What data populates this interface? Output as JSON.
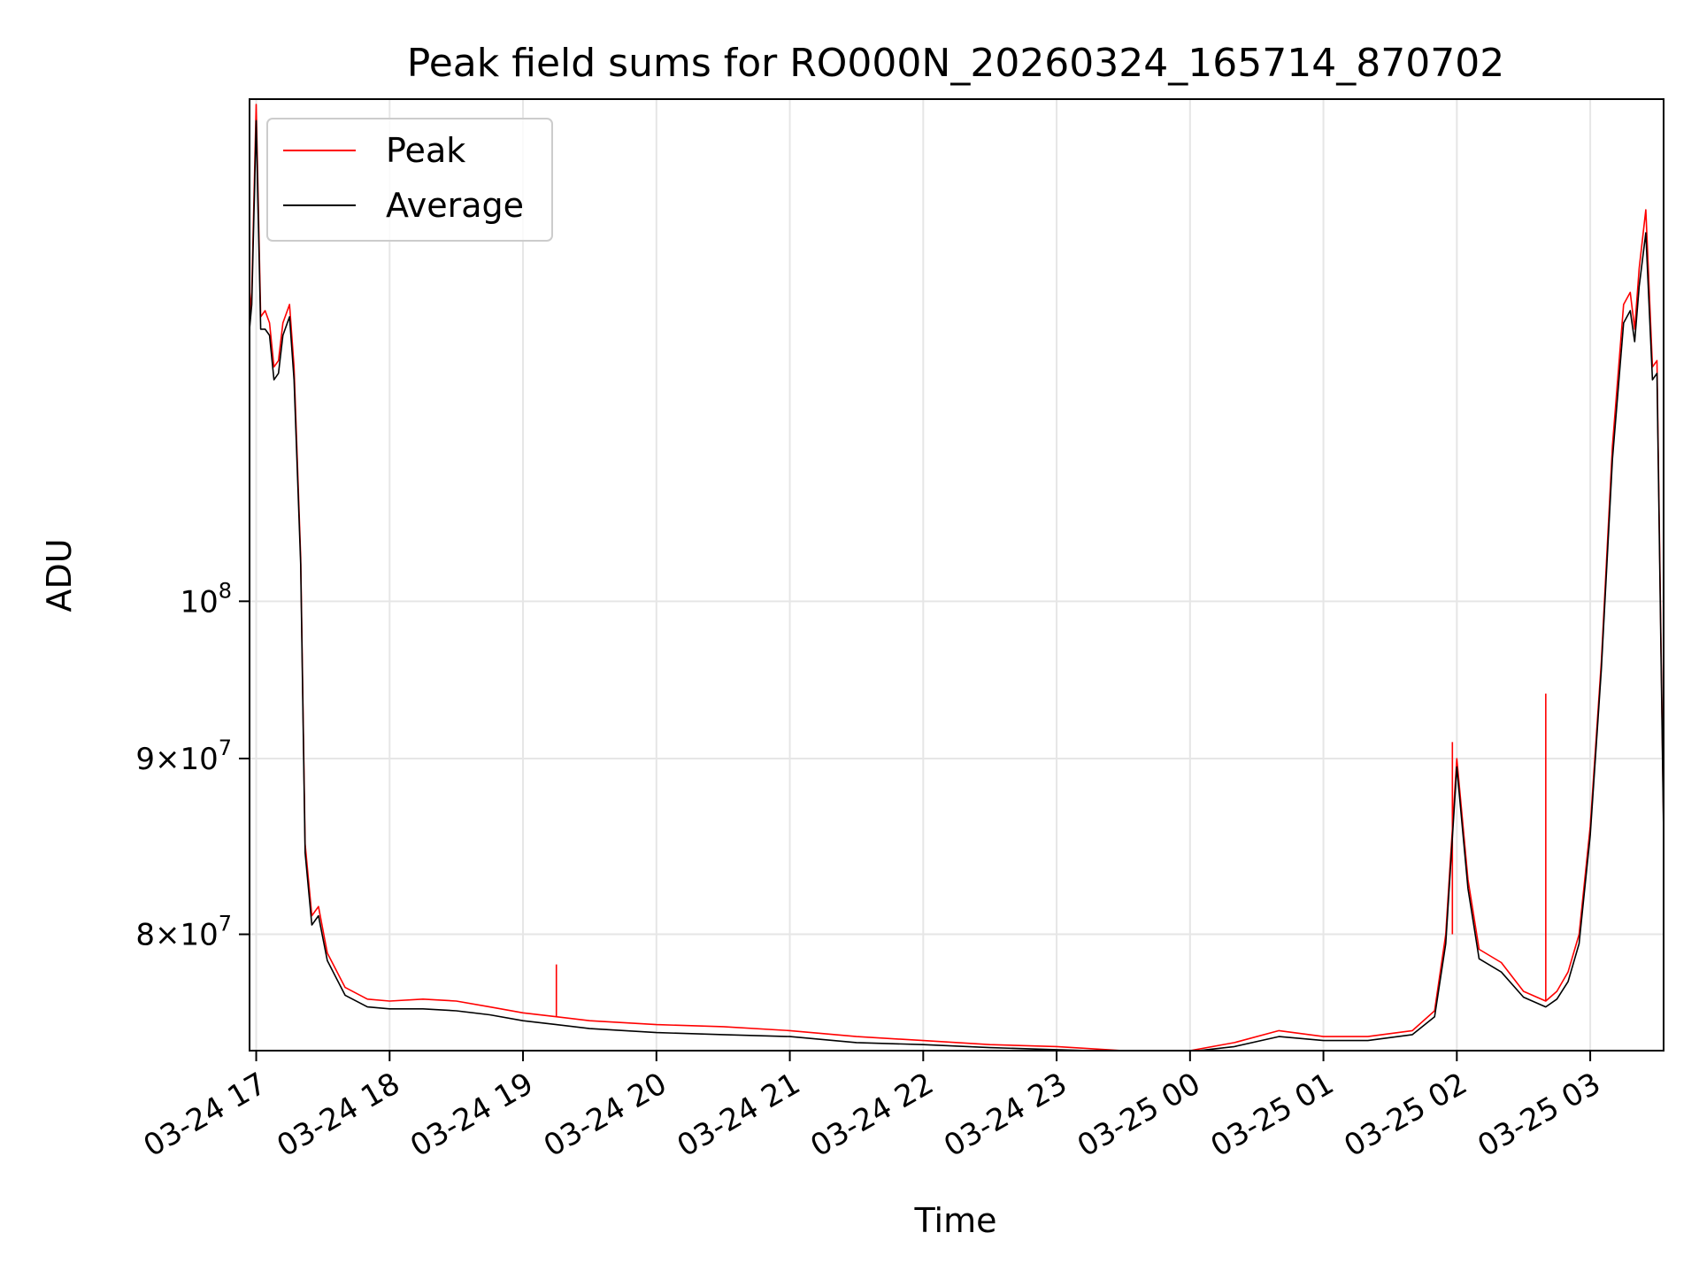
{
  "chart_data": {
    "type": "line",
    "title": "Peak field sums for RO000N_20260324_165714_870702",
    "xlabel": "Time",
    "ylabel": "ADU",
    "x_axis": {
      "start": "2026-03-24 16:57",
      "end": "2026-03-25 03:33",
      "ticks": [
        "03-24 17",
        "03-24 18",
        "03-24 19",
        "03-24 20",
        "03-24 21",
        "03-24 22",
        "03-24 23",
        "03-25 00",
        "03-25 01",
        "03-25 02",
        "03-25 03"
      ]
    },
    "y_axis": {
      "scale": "log",
      "ylim": [
        74000000,
        140000000
      ],
      "ticks": [
        {
          "value": 80000000,
          "mantissa": "8",
          "exponent": "7"
        },
        {
          "value": 90000000,
          "mantissa": "9",
          "exponent": "7"
        },
        {
          "value": 100000000,
          "mantissa": "10",
          "exponent": "8"
        }
      ]
    },
    "grid": true,
    "legend": "upper-left",
    "series": [
      {
        "name": "Peak",
        "color": "#ff0000",
        "x": [
          "2026-03-24 16:57",
          "2026-03-24 16:58",
          "2026-03-24 17:00",
          "2026-03-24 17:02",
          "2026-03-24 17:04",
          "2026-03-24 17:06",
          "2026-03-24 17:08",
          "2026-03-24 17:10",
          "2026-03-24 17:12",
          "2026-03-24 17:15",
          "2026-03-24 17:17",
          "2026-03-24 17:20",
          "2026-03-24 17:22",
          "2026-03-24 17:25",
          "2026-03-24 17:28",
          "2026-03-24 17:32",
          "2026-03-24 17:40",
          "2026-03-24 17:50",
          "2026-03-24 18:00",
          "2026-03-24 18:15",
          "2026-03-24 18:30",
          "2026-03-24 18:45",
          "2026-03-24 19:00",
          "2026-03-24 19:15",
          "2026-03-24 19:30",
          "2026-03-24 20:00",
          "2026-03-24 20:30",
          "2026-03-24 21:00",
          "2026-03-24 21:30",
          "2026-03-24 22:00",
          "2026-03-24 22:30",
          "2026-03-24 23:00",
          "2026-03-24 23:30",
          "2026-03-24 23:45",
          "2026-03-25 00:00",
          "2026-03-25 00:20",
          "2026-03-25 00:40",
          "2026-03-25 01:00",
          "2026-03-25 01:20",
          "2026-03-25 01:40",
          "2026-03-25 01:50",
          "2026-03-25 01:55",
          "2026-03-25 02:00",
          "2026-03-25 02:05",
          "2026-03-25 02:10",
          "2026-03-25 02:20",
          "2026-03-25 02:30",
          "2026-03-25 02:40",
          "2026-03-25 02:45",
          "2026-03-25 02:50",
          "2026-03-25 02:55",
          "2026-03-25 03:00",
          "2026-03-25 03:05",
          "2026-03-25 03:10",
          "2026-03-25 03:15",
          "2026-03-25 03:18",
          "2026-03-25 03:20",
          "2026-03-25 03:22",
          "2026-03-25 03:25",
          "2026-03-25 03:28",
          "2026-03-25 03:30",
          "2026-03-25 03:33"
        ],
        "y": [
          121000000,
          123000000,
          139500000,
          121000000,
          121500000,
          120500000,
          117000000,
          117500000,
          120500000,
          122000000,
          117000000,
          103000000,
          85000000,
          81000000,
          81500000,
          79000000,
          77200000,
          76600000,
          76500000,
          76600000,
          76500000,
          76200000,
          75900000,
          75700000,
          75500000,
          75300000,
          75200000,
          75000000,
          74700000,
          74500000,
          74300000,
          74200000,
          74000000,
          74000000,
          74000000,
          74400000,
          75000000,
          74700000,
          74700000,
          75000000,
          76000000,
          80000000,
          90000000,
          83000000,
          79200000,
          78500000,
          77000000,
          76500000,
          77000000,
          78000000,
          80000000,
          86000000,
          96000000,
          111000000,
          122000000,
          123000000,
          120000000,
          125000000,
          130000000,
          117000000,
          117500000,
          86000000
        ],
        "spikes": [
          {
            "x": "2026-03-24 19:15",
            "y": 78400000
          },
          {
            "x": "2026-03-25 01:58",
            "y": 91000000
          },
          {
            "x": "2026-03-25 02:40",
            "y": 94000000
          }
        ]
      },
      {
        "name": "Average",
        "color": "#000000",
        "x": [
          "2026-03-24 16:57",
          "2026-03-24 16:58",
          "2026-03-24 17:00",
          "2026-03-24 17:02",
          "2026-03-24 17:04",
          "2026-03-24 17:06",
          "2026-03-24 17:08",
          "2026-03-24 17:10",
          "2026-03-24 17:12",
          "2026-03-24 17:15",
          "2026-03-24 17:17",
          "2026-03-24 17:20",
          "2026-03-24 17:22",
          "2026-03-24 17:25",
          "2026-03-24 17:28",
          "2026-03-24 17:32",
          "2026-03-24 17:40",
          "2026-03-24 17:50",
          "2026-03-24 18:00",
          "2026-03-24 18:15",
          "2026-03-24 18:30",
          "2026-03-24 18:45",
          "2026-03-24 19:00",
          "2026-03-24 19:15",
          "2026-03-24 19:30",
          "2026-03-24 20:00",
          "2026-03-24 20:30",
          "2026-03-24 21:00",
          "2026-03-24 21:30",
          "2026-03-24 22:00",
          "2026-03-24 22:30",
          "2026-03-24 23:00",
          "2026-03-24 23:30",
          "2026-03-24 23:45",
          "2026-03-25 00:00",
          "2026-03-25 00:20",
          "2026-03-25 00:40",
          "2026-03-25 01:00",
          "2026-03-25 01:20",
          "2026-03-25 01:40",
          "2026-03-25 01:50",
          "2026-03-25 01:55",
          "2026-03-25 02:00",
          "2026-03-25 02:05",
          "2026-03-25 02:10",
          "2026-03-25 02:20",
          "2026-03-25 02:30",
          "2026-03-25 02:40",
          "2026-03-25 02:45",
          "2026-03-25 02:50",
          "2026-03-25 02:55",
          "2026-03-25 03:00",
          "2026-03-25 03:05",
          "2026-03-25 03:10",
          "2026-03-25 03:15",
          "2026-03-25 03:18",
          "2026-03-25 03:20",
          "2026-03-25 03:22",
          "2026-03-25 03:25",
          "2026-03-25 03:28",
          "2026-03-25 03:30",
          "2026-03-25 03:33"
        ],
        "y": [
          120000000,
          122000000,
          138000000,
          120000000,
          120000000,
          119500000,
          116000000,
          116500000,
          119500000,
          121000000,
          116000000,
          102500000,
          84500000,
          80500000,
          81000000,
          78600000,
          76800000,
          76200000,
          76100000,
          76100000,
          76000000,
          75800000,
          75500000,
          75300000,
          75100000,
          74900000,
          74800000,
          74700000,
          74400000,
          74300000,
          74150000,
          74050000,
          73950000,
          73950000,
          73950000,
          74200000,
          74700000,
          74500000,
          74500000,
          74800000,
          75700000,
          79500000,
          89500000,
          82500000,
          78700000,
          78000000,
          76700000,
          76200000,
          76600000,
          77500000,
          79500000,
          85500000,
          95500000,
          110000000,
          120500000,
          121500000,
          119000000,
          123500000,
          128000000,
          116000000,
          116500000,
          85500000
        ]
      }
    ]
  }
}
